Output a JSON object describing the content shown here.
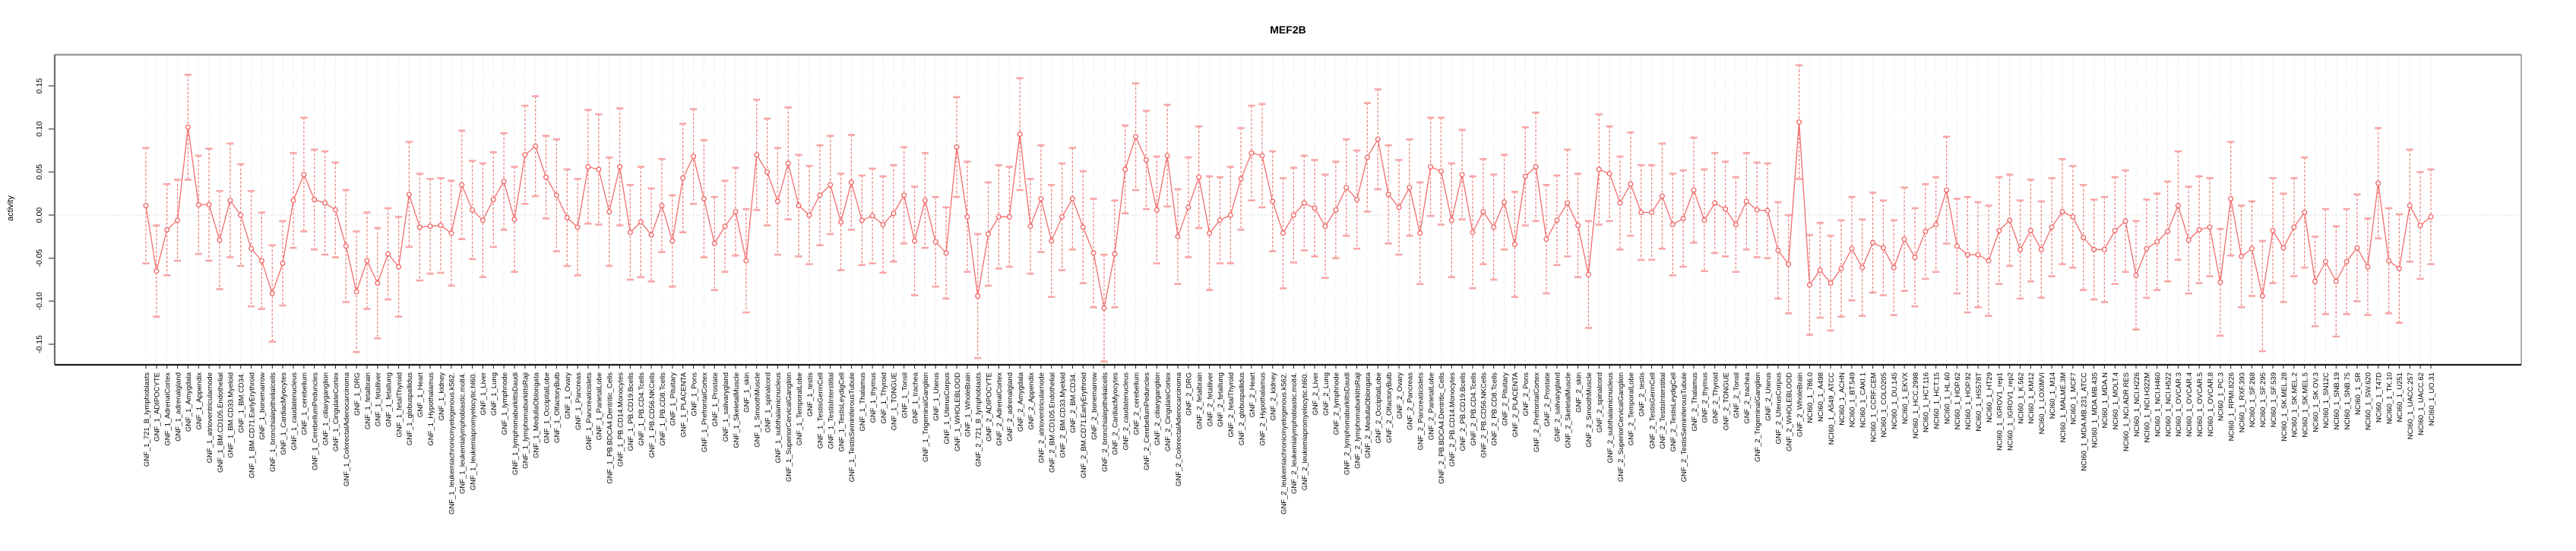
{
  "title": "MEF2B",
  "y_axis": {
    "label": "activity",
    "tick_labels": [
      "0.15",
      "0.10",
      "0.05",
      "0.00",
      "-0.05",
      "-0.10",
      "-0.15"
    ],
    "tick_values": [
      0.15,
      0.1,
      0.05,
      0.0,
      -0.05,
      -0.1,
      -0.15
    ]
  },
  "colors": {
    "series": "#f26d6d",
    "point_stroke": "#ef5b5b",
    "error_stem": "#f08080",
    "error_cap": "#f7a6a6",
    "gridline": "#d8d8d8",
    "zero_line": "#bdbdbd",
    "box": "#9a9a9a",
    "axis": "#1a1a1a",
    "text": "#000000"
  },
  "chart_data": {
    "type": "line",
    "title": "MEF2B",
    "xlabel": "",
    "ylabel": "activity",
    "ylim": [
      -0.174,
      0.186
    ],
    "grid": true,
    "zero_line": true,
    "legend_position": "none",
    "error_bars": true,
    "categories": [
      "GNF_1_721_B_lymphoblasts",
      "GNF_1_ADIPOCYTE",
      "GNF_1_AdrenalCortex",
      "GNF_1_adrenalgland",
      "GNF_1_Amygdala",
      "GNF_1_Appendix",
      "GNF_1_atrioventricularnode",
      "GNF_1_BM.CD105.Endothelial",
      "GNF_1_BM.CD33.Myeloid",
      "GNF_1_BM.CD34.",
      "GNF_1_BM.CD71.EarlyErythroid",
      "GNF_1_bonemarrow",
      "GNF_1_bronchialepithelialcells",
      "GNF_1_CardiacMyocytes",
      "GNF_1_caudatenucleus",
      "GNF_1_cerebellum",
      "GNF_1_CerebellumPeduncles",
      "GNF_1_ciliaryganglion",
      "GNF_1_CingulateCortex",
      "GNF_1_ColorectalAdenocarcinoma",
      "GNF_1_DRG",
      "GNF_1_fetalbrain",
      "GNF_1_fetalliver",
      "GNF_1_fetallung",
      "GNF_1_fetalThyroid",
      "GNF_1_globuspallidus",
      "GNF_1_Heart",
      "GNF_1_Hypothalamus",
      "GNF_1_kidney",
      "GNF_1_leukemiachronicmyelogenous.k562.",
      "GNF_1_leukemialymphoblastic.molt4.",
      "GNF_1_leukemiapromyelocytic.hl60.",
      "GNF_1_Liver",
      "GNF_1_Lung",
      "GNF_1_lymphnode",
      "GNF_1_lymphomaburkittsDaudi",
      "GNF_1_lymphomaburkittsRaji",
      "GNF_1_MedullaOblongata",
      "GNF_1_OccipitalLobe",
      "GNF_1_OlfactoryBulb",
      "GNF_1_Ovary",
      "GNF_1_Pancreas",
      "GNF_1_Pancreaticislets",
      "GNF_1_ParietalLobe",
      "GNF_1_PB.BDCA4.Dentritic_Cells",
      "GNF_1_PB.CD14.Monocytes",
      "GNF_1_PB.CD19.Bcells",
      "GNF_1_PB.CD4.Tcells",
      "GNF_1_PB.CD56.NKCells",
      "GNF_1_PB.CD8.Tcells",
      "GNF_1_Pituitary",
      "GNF_1_PLACENTA",
      "GNF_1_Pons",
      "GNF_1_PrefrontalCortex",
      "GNF_1_Prostate",
      "GNF_1_salivarygland",
      "GNF_1_SkeletalMuscle",
      "GNF_1_skin",
      "GNF_1_SmoothMuscle",
      "GNF_1_spinalcord",
      "GNF_1_subthalamicnucleus",
      "GNF_1_SuperiorCervicalGanglion",
      "GNF_1_TemporalLobe",
      "GNF_1_testis",
      "GNF_1_TestisGermCell",
      "GNF_1_TestisInterstitial",
      "GNF_1_TestisLeydigCell",
      "GNF_1_TestisSeminiferousTubule",
      "GNF_1_Thalamus",
      "GNF_1_thymus",
      "GNF_1_Thyroid",
      "GNF_1_TONGUE",
      "GNF_1_Tonsil",
      "GNF_1_trachea",
      "GNF_1_TrigeminalGanglion",
      "GNF_1_Uterus",
      "GNF_1_UterusCorpus",
      "GNF_1_WHOLEBLOOD",
      "GNF_1_WholeBrain",
      "GNF_2_721_B_lymphoblasts",
      "GNF_2_ADIPOCYTE",
      "GNF_2_AdrenalCortex",
      "GNF_2_adrenalgland",
      "GNF_2_Amygdala",
      "GNF_2_Appendix",
      "GNF_2_atrioventricularnode",
      "GNF_2_BM.CD105.Endothelial",
      "GNF_2_BM.CD33.Myeloid",
      "GNF_2_BM.CD34.",
      "GNF_2_BM.CD71.EarlyErythroid",
      "GNF_2_bonemarrow",
      "GNF_2_bronchialepithelialcells",
      "GNF_2_CardiacMyocytes",
      "GNF_2_caudatenucleus",
      "GNF_2_cerebellum",
      "GNF_2_CerebellumPeduncles",
      "GNF_2_ciliaryganglion",
      "GNF_2_CingulateCortex",
      "GNF_2_ColorectalAdenocarcinoma",
      "GNF_2_DRG",
      "GNF_2_fetalbrain",
      "GNF_2_fetalliver",
      "GNF_2_fetallung",
      "GNF_2_fetalThyroid",
      "GNF_2_globuspallidus",
      "GNF_2_Heart",
      "GNF_2_Hypothalamus",
      "GNF_2_kidney",
      "GNF_2_leukemiachronicmyelogenous.k562.",
      "GNF_2_leukemialymphoblastic.molt4.",
      "GNF_2_leukemiapromyelocytic.hl60.",
      "GNF_2_Liver",
      "GNF_2_Lung",
      "GNF_2_lymphnode",
      "GNF_2_lymphomaburkittsDaudi",
      "GNF_2_lymphomaburkittsRaji",
      "GNF_2_MedullaOblongata",
      "GNF_2_OccipitalLobe",
      "GNF_2_OlfactoryBulb",
      "GNF_2_Ovary",
      "GNF_2_Pancreas",
      "GNF_2_Pancreaticislets",
      "GNF_2_ParietalLobe",
      "GNF_2_PB.BDCA4.Dentritic_Cells",
      "GNF_2_PB.CD14.Monocytes",
      "GNF_2_PB.CD19.Bcells",
      "GNF_2_PB.CD4.Tcells",
      "GNF_2_PB.CD56.NKCells",
      "GNF_2_PB.CD8.Tcells",
      "GNF_2_Pituitary",
      "GNF_2_PLACENTA",
      "GNF_2_Pons",
      "GNF_2_PrefrontalCortex",
      "GNF_2_Prostate",
      "GNF_2_salivarygland",
      "GNF_2_SkeletalMuscle",
      "GNF_2_skin",
      "GNF_2_SmoothMuscle",
      "GNF_2_spinalcord",
      "GNF_2_subthalamicnucleus",
      "GNF_2_SuperiorCervicalGanglion",
      "GNF_2_TemporalLobe",
      "GNF_2_testis",
      "GNF_2_TestisGermCell",
      "GNF_2_TestisInterstitial",
      "GNF_2_TestisLeydigCell",
      "GNF_2_TestisSeminiferousTubule",
      "GNF_2_Thalamus",
      "GNF_2_thymus",
      "GNF_2_Thyroid",
      "GNF_2_TONGUE",
      "GNF_2_Tonsil",
      "GNF_2_trachea",
      "GNF_2_TrigeminalGanglion",
      "GNF_2_Uterus",
      "GNF_2_UterusCorpus",
      "GNF_2_WHOLEBLOOD",
      "GNF_2_WholeBrain",
      "NCI60_1_786.0",
      "NCI60_1_A498",
      "NCI60_1_A549_ATCC",
      "NCI60_1_ACHN",
      "NCI60_1_BT.549",
      "NCI60_1_CAKI.1",
      "NCI60_1_CCRF.CEM",
      "NCI60_1_COLO205",
      "NCI60_1_DU.145",
      "NCI60_1_EKVX",
      "NCI60_1_HCC.2998",
      "NCI60_1_HCT.116",
      "NCI60_1_HCT.15",
      "NCI60_1_HL.60",
      "NCI60_1_HOP.62",
      "NCI60_1_HOP.92",
      "NCI60_1_HS578T",
      "NCI60_1_HT29",
      "NCI60_1_IGROV1_rep1",
      "NCI60_1_IGROV1_rep2",
      "NCI60_1_K.562",
      "NCI60_1_KM12",
      "NCI60_1_LOXIMVI",
      "NCI60_1_M14",
      "NCI60_1_MALME.3M",
      "NCI60_1_MCF7",
      "NCI60_1_MDA.MB.231_ATCC",
      "NCI60_1_MDA.MB.435",
      "NCI60_1_MDA.N",
      "NCI60_1_MOLT.4",
      "NCI60_1_NCI.ADR.RES",
      "NCI60_1_NCI.H226",
      "NCI60_1_NCI.H322M",
      "NCI60_1_NCI.H460",
      "NCI60_1_NCI.H522",
      "NCI60_1_OVCAR.3",
      "NCI60_1_OVCAR.4",
      "NCI60_1_OVCAR.5",
      "NCI60_1_OVCAR.8",
      "NCI60_1_PC.3",
      "NCI60_1_RPMI.8226",
      "NCI60_1_RXF.393",
      "NCI60_1_SF.268",
      "NCI60_1_SF.295",
      "NCI60_1_SF.539",
      "NCI60_1_SK.MEL.28",
      "NCI60_1_SK.MEL.2",
      "NCI60_1_SK.MEL.5",
      "NCI60_1_SK.OV.3",
      "NCI60_1_SN12C",
      "NCI60_1_SNB.19",
      "NCI60_1_SNB.75",
      "NCI60_1_SR",
      "NCI60_1_SW.620",
      "NCI60_1_T47D",
      "NCI60_1_TK.10",
      "NCI60_1_U251",
      "NCI60_1_UACC.257",
      "NCI60_1_UACC.62",
      "NCI60_1_UO.31"
    ],
    "series": [
      {
        "name": "activity",
        "values": [
          0.011,
          -0.065,
          -0.017,
          -0.006,
          0.102,
          0.012,
          0.012,
          -0.029,
          0.017,
          0.0,
          -0.039,
          -0.053,
          -0.091,
          -0.056,
          0.017,
          0.047,
          0.018,
          0.014,
          0.006,
          -0.036,
          -0.089,
          -0.053,
          -0.079,
          -0.045,
          -0.06,
          0.024,
          -0.014,
          -0.013,
          -0.012,
          -0.021,
          0.035,
          0.006,
          -0.006,
          0.018,
          0.039,
          -0.005,
          0.07,
          0.08,
          0.044,
          0.023,
          -0.003,
          -0.014,
          0.056,
          0.053,
          0.004,
          0.056,
          -0.02,
          -0.008,
          -0.023,
          0.011,
          -0.03,
          0.043,
          0.068,
          0.019,
          -0.033,
          -0.013,
          0.004,
          -0.053,
          0.07,
          0.05,
          0.016,
          0.06,
          0.011,
          0.0,
          0.023,
          0.035,
          -0.008,
          0.038,
          -0.006,
          -0.001,
          -0.011,
          0.002,
          0.023,
          -0.03,
          0.017,
          -0.031,
          -0.044,
          0.079,
          -0.002,
          -0.094,
          -0.022,
          -0.002,
          -0.002,
          0.094,
          -0.013,
          0.019,
          -0.03,
          -0.002,
          0.019,
          -0.014,
          -0.044,
          -0.108,
          -0.045,
          0.053,
          0.091,
          0.064,
          0.006,
          0.069,
          -0.025,
          0.009,
          0.044,
          -0.021,
          -0.006,
          0.0,
          0.042,
          0.072,
          0.069,
          0.016,
          -0.021,
          0.0,
          0.014,
          0.008,
          -0.013,
          0.006,
          0.032,
          0.018,
          0.067,
          0.088,
          0.024,
          0.009,
          0.032,
          -0.021,
          0.056,
          0.051,
          -0.006,
          0.047,
          -0.02,
          0.004,
          -0.014,
          0.015,
          -0.034,
          0.045,
          0.056,
          -0.028,
          -0.006,
          0.014,
          -0.012,
          -0.069,
          0.053,
          0.048,
          0.014,
          0.036,
          0.003,
          0.003,
          0.022,
          -0.011,
          -0.004,
          0.029,
          -0.006,
          0.014,
          0.007,
          -0.011,
          0.016,
          0.006,
          0.005,
          -0.041,
          -0.057,
          0.108,
          -0.081,
          -0.064,
          -0.079,
          -0.062,
          -0.039,
          -0.061,
          -0.032,
          -0.038,
          -0.061,
          -0.028,
          -0.049,
          -0.019,
          -0.011,
          0.029,
          -0.036,
          -0.046,
          -0.046,
          -0.053,
          -0.018,
          -0.006,
          -0.04,
          -0.018,
          -0.04,
          -0.014,
          0.004,
          -0.002,
          -0.026,
          -0.04,
          -0.04,
          -0.018,
          -0.007,
          -0.07,
          -0.039,
          -0.031,
          -0.019,
          0.011,
          -0.029,
          -0.017,
          -0.014,
          -0.078,
          0.019,
          -0.048,
          -0.039,
          -0.094,
          -0.018,
          -0.038,
          -0.014,
          0.003,
          -0.077,
          -0.054,
          -0.077,
          -0.054,
          -0.038,
          -0.06,
          0.037,
          -0.053,
          -0.062,
          0.011,
          -0.012,
          -0.002
        ],
        "errors": [
          0.067,
          0.053,
          0.053,
          0.047,
          0.061,
          0.057,
          0.065,
          0.057,
          0.066,
          0.059,
          0.067,
          0.056,
          0.056,
          0.049,
          0.055,
          0.066,
          0.058,
          0.06,
          0.055,
          0.065,
          0.07,
          0.056,
          0.064,
          0.053,
          0.058,
          0.061,
          0.062,
          0.055,
          0.055,
          0.061,
          0.063,
          0.057,
          0.066,
          0.055,
          0.056,
          0.061,
          0.057,
          0.058,
          0.048,
          0.065,
          0.056,
          0.056,
          0.066,
          0.064,
          0.063,
          0.068,
          0.055,
          0.064,
          0.054,
          0.054,
          0.053,
          0.063,
          0.055,
          0.068,
          0.054,
          0.053,
          0.051,
          0.06,
          0.064,
          0.062,
          0.062,
          0.065,
          0.059,
          0.057,
          0.058,
          0.057,
          0.056,
          0.055,
          0.052,
          0.055,
          0.056,
          0.056,
          0.056,
          0.063,
          0.055,
          0.052,
          0.053,
          0.058,
          0.064,
          0.072,
          0.06,
          0.06,
          0.058,
          0.065,
          0.055,
          0.062,
          0.065,
          0.062,
          0.059,
          0.065,
          0.063,
          0.062,
          0.062,
          0.051,
          0.062,
          0.057,
          0.062,
          0.059,
          0.055,
          0.058,
          0.059,
          0.066,
          0.05,
          0.056,
          0.059,
          0.055,
          0.06,
          0.058,
          0.064,
          0.055,
          0.055,
          0.056,
          0.06,
          0.056,
          0.056,
          0.057,
          0.063,
          0.058,
          0.057,
          0.055,
          0.056,
          0.059,
          0.057,
          0.062,
          0.066,
          0.052,
          0.065,
          0.061,
          0.061,
          0.055,
          0.061,
          0.057,
          0.063,
          0.063,
          0.052,
          0.062,
          0.06,
          0.062,
          0.064,
          0.055,
          0.054,
          0.06,
          0.055,
          0.055,
          0.061,
          0.059,
          0.056,
          0.061,
          0.059,
          0.058,
          0.055,
          0.055,
          0.056,
          0.055,
          0.055,
          0.056,
          0.057,
          0.066,
          0.058,
          0.055,
          0.055,
          0.056,
          0.06,
          0.056,
          0.058,
          0.055,
          0.055,
          0.06,
          0.057,
          0.055,
          0.055,
          0.062,
          0.055,
          0.067,
          0.061,
          0.064,
          0.062,
          0.053,
          0.057,
          0.059,
          0.056,
          0.057,
          0.061,
          0.059,
          0.061,
          0.058,
          0.061,
          0.062,
          0.059,
          0.063,
          0.057,
          0.056,
          0.058,
          0.063,
          0.062,
          0.062,
          0.057,
          0.062,
          0.066,
          0.059,
          0.055,
          0.064,
          0.061,
          0.063,
          0.057,
          0.064,
          0.052,
          0.061,
          0.064,
          0.061,
          0.062,
          0.056,
          0.064,
          0.061,
          0.063,
          0.065,
          0.062,
          0.055
        ]
      }
    ]
  }
}
